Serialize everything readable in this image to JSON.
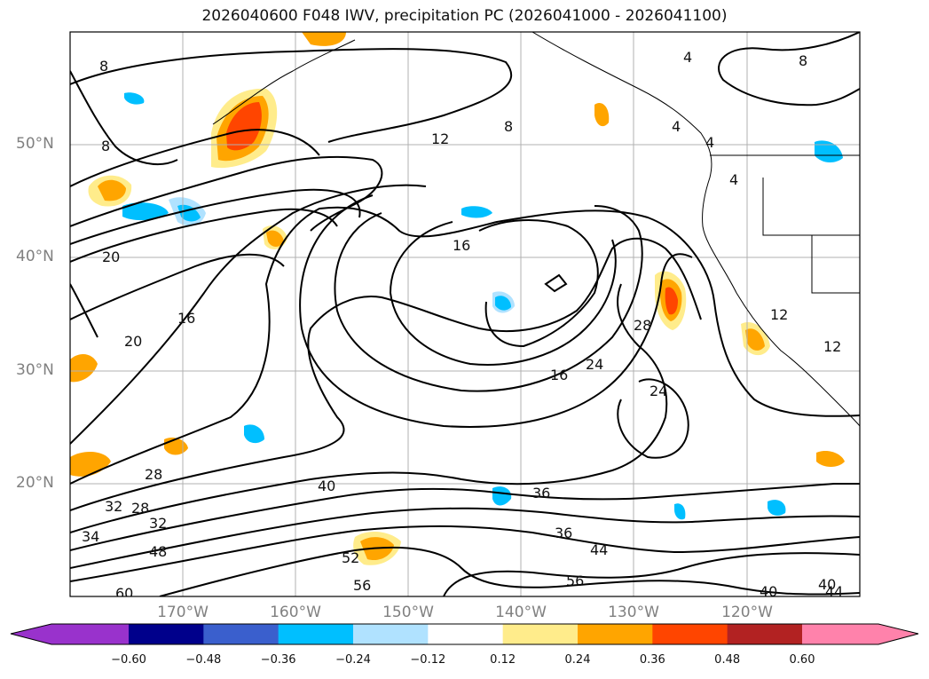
{
  "title": "2026040600 F048 IWV, precipitation PC (2026041000 - 2026041100)",
  "lat_labels": [
    "50°N",
    "40°N",
    "30°N",
    "20°N"
  ],
  "lon_labels": [
    "170°W",
    "160°W",
    "150°W",
    "140°W",
    "130°W",
    "120°W"
  ],
  "contour_labels": [
    "8",
    "8",
    "8",
    "8",
    "4",
    "4",
    "4",
    "4",
    "12",
    "12",
    "16",
    "16",
    "16",
    "20",
    "20",
    "24",
    "24",
    "28",
    "28",
    "28",
    "32",
    "32",
    "36",
    "36",
    "40",
    "40",
    "40",
    "44",
    "44",
    "48",
    "52",
    "56",
    "56",
    "60",
    "34",
    "12"
  ],
  "colorbar": {
    "ticks": [
      "−0.60",
      "−0.48",
      "−0.36",
      "−0.24",
      "−0.12",
      "0.12",
      "0.24",
      "0.36",
      "0.48",
      "0.60"
    ],
    "colors": [
      "#9932cc",
      "#00008b",
      "#3a5fcd",
      "#00bfff",
      "#b0e2ff",
      "#ffffff",
      "#ffec8b",
      "#ffa500",
      "#ff4500",
      "#b22222",
      "#ff82ab"
    ]
  },
  "map": {
    "lat_range": [
      10,
      60
    ],
    "lon_range": [
      -180,
      -110
    ],
    "grid": true,
    "frame_color": "#000000"
  }
}
